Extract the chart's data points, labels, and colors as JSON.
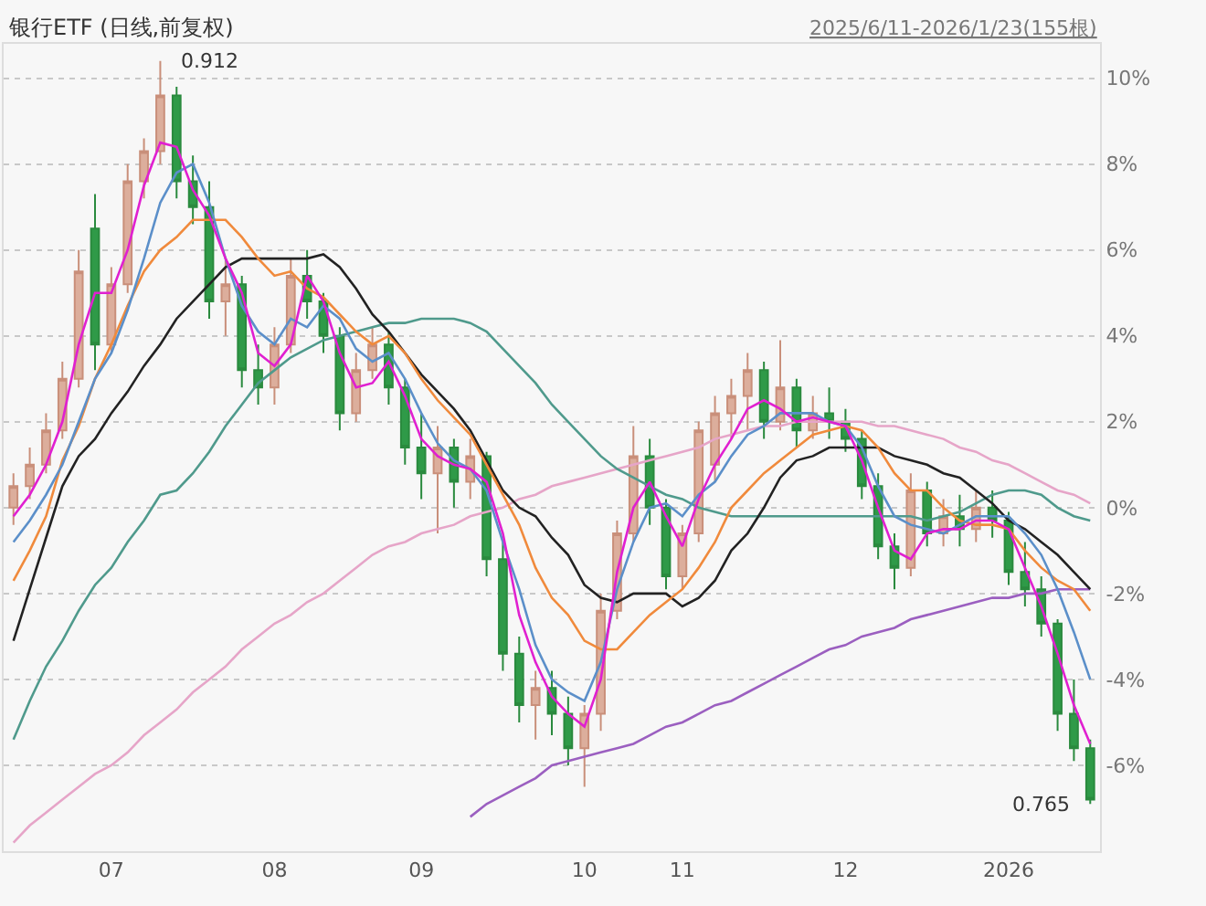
{
  "chart_data": {
    "type": "candlestick",
    "title": "银行ETF (日线,前复权)",
    "subtitle": "2025/6/11-2026/1/23(155根)",
    "categories": [
      null,
      null,
      null,
      null,
      null,
      null,
      "07",
      null,
      null,
      null,
      null,
      null,
      null,
      null,
      null,
      null,
      "08",
      null,
      null,
      null,
      null,
      null,
      null,
      null,
      null,
      "09",
      null,
      null,
      null,
      null,
      null,
      null,
      null,
      null,
      null,
      "10",
      null,
      null,
      null,
      null,
      null,
      "11",
      null,
      null,
      null,
      null,
      null,
      null,
      null,
      null,
      null,
      "12",
      null,
      null,
      null,
      null,
      null,
      null,
      null,
      null,
      null,
      "2026",
      null,
      null,
      null,
      null,
      null
    ],
    "ohlc": [
      [
        0.0,
        0.8,
        -0.4,
        0.5
      ],
      [
        0.5,
        1.4,
        0.2,
        1.0
      ],
      [
        1.0,
        2.2,
        0.8,
        1.8
      ],
      [
        1.8,
        3.4,
        1.6,
        3.0
      ],
      [
        3.0,
        6.0,
        2.8,
        5.5
      ],
      [
        6.5,
        7.3,
        3.2,
        3.8
      ],
      [
        3.8,
        5.6,
        3.6,
        5.2
      ],
      [
        5.2,
        8.0,
        5.0,
        7.6
      ],
      [
        7.6,
        8.6,
        7.2,
        8.3
      ],
      [
        8.3,
        10.4,
        8.0,
        9.6
      ],
      [
        9.6,
        9.8,
        7.2,
        7.6
      ],
      [
        7.6,
        8.2,
        6.6,
        7.0
      ],
      [
        7.0,
        7.6,
        4.4,
        4.8
      ],
      [
        4.8,
        5.8,
        4.0,
        5.2
      ],
      [
        5.2,
        5.4,
        2.8,
        3.2
      ],
      [
        3.2,
        3.8,
        2.4,
        2.8
      ],
      [
        2.8,
        4.2,
        2.4,
        3.8
      ],
      [
        3.8,
        5.8,
        3.6,
        5.4
      ],
      [
        5.4,
        6.0,
        4.4,
        4.8
      ],
      [
        4.8,
        5.0,
        3.6,
        4.0
      ],
      [
        4.0,
        4.2,
        1.8,
        2.2
      ],
      [
        2.2,
        3.6,
        2.0,
        3.2
      ],
      [
        3.2,
        4.2,
        3.0,
        3.8
      ],
      [
        3.8,
        4.1,
        2.4,
        2.8
      ],
      [
        2.8,
        3.0,
        1.0,
        1.4
      ],
      [
        1.4,
        2.2,
        0.2,
        0.8
      ],
      [
        0.8,
        1.9,
        -0.6,
        1.4
      ],
      [
        1.4,
        1.6,
        0.0,
        0.6
      ],
      [
        0.6,
        1.6,
        0.2,
        1.2
      ],
      [
        1.2,
        1.3,
        -1.6,
        -1.2
      ],
      [
        -1.2,
        -0.8,
        -3.8,
        -3.4
      ],
      [
        -3.4,
        -3.0,
        -5.0,
        -4.6
      ],
      [
        -4.6,
        -3.8,
        -5.4,
        -4.2
      ],
      [
        -4.2,
        -3.8,
        -5.3,
        -4.8
      ],
      [
        -4.8,
        -4.4,
        -6.0,
        -5.6
      ],
      [
        -5.6,
        -4.6,
        -6.5,
        -4.8
      ],
      [
        -4.8,
        -2.0,
        -5.2,
        -2.4
      ],
      [
        -2.4,
        -0.3,
        -2.6,
        -0.6
      ],
      [
        -0.6,
        1.9,
        -0.8,
        1.2
      ],
      [
        1.2,
        1.6,
        -0.4,
        0.0
      ],
      [
        0.0,
        0.2,
        -1.9,
        -1.6
      ],
      [
        -1.6,
        -0.4,
        -1.9,
        -0.6
      ],
      [
        -0.6,
        2.0,
        -0.8,
        1.8
      ],
      [
        1.0,
        2.6,
        0.6,
        2.2
      ],
      [
        2.2,
        3.0,
        1.6,
        2.6
      ],
      [
        2.6,
        3.6,
        1.8,
        3.2
      ],
      [
        3.2,
        3.4,
        1.6,
        2.0
      ],
      [
        2.0,
        3.9,
        1.8,
        2.8
      ],
      [
        2.8,
        3.0,
        1.4,
        1.8
      ],
      [
        1.8,
        2.6,
        1.6,
        2.2
      ],
      [
        2.2,
        2.8,
        1.6,
        2.0
      ],
      [
        2.0,
        2.3,
        1.3,
        1.6
      ],
      [
        1.6,
        1.8,
        0.2,
        0.5
      ],
      [
        0.5,
        0.8,
        -1.2,
        -0.9
      ],
      [
        -0.9,
        -0.6,
        -1.9,
        -1.4
      ],
      [
        -1.4,
        0.8,
        -1.6,
        0.4
      ],
      [
        0.4,
        0.6,
        -0.9,
        -0.6
      ],
      [
        -0.6,
        0.2,
        -0.9,
        -0.2
      ],
      [
        -0.2,
        0.3,
        -0.9,
        -0.5
      ],
      [
        -0.5,
        0.4,
        -0.8,
        0.0
      ],
      [
        0.0,
        0.4,
        -0.7,
        -0.3
      ],
      [
        -0.3,
        -0.1,
        -1.8,
        -1.5
      ],
      [
        -1.5,
        -0.8,
        -2.3,
        -1.9
      ],
      [
        -1.9,
        -1.6,
        -3.0,
        -2.7
      ],
      [
        -2.7,
        -2.6,
        -5.2,
        -4.8
      ],
      [
        -4.8,
        -4.0,
        -5.9,
        -5.6
      ],
      [
        -5.6,
        -5.4,
        -6.9,
        -6.8
      ]
    ],
    "series": [
      {
        "type": "line",
        "color": "#9b5fc0",
        "values": [
          null,
          null,
          null,
          null,
          null,
          null,
          null,
          null,
          null,
          null,
          null,
          null,
          null,
          null,
          null,
          null,
          null,
          null,
          null,
          null,
          null,
          null,
          null,
          null,
          null,
          null,
          null,
          null,
          -7.2,
          -6.9,
          -6.7,
          -6.5,
          -6.3,
          -6.0,
          -5.9,
          -5.8,
          -5.7,
          -5.6,
          -5.5,
          -5.3,
          -5.1,
          -5.0,
          -4.8,
          -4.6,
          -4.5,
          -4.3,
          -4.1,
          -3.9,
          -3.7,
          -3.5,
          -3.3,
          -3.2,
          -3.0,
          -2.9,
          -2.8,
          -2.6,
          -2.5,
          -2.4,
          -2.3,
          -2.2,
          -2.1,
          -2.1,
          -2.0,
          -2.0,
          -1.9,
          -1.9,
          -1.9
        ]
      },
      {
        "type": "line",
        "color": "#e6a5c8",
        "values": [
          -7.8,
          -7.4,
          -7.1,
          -6.8,
          -6.5,
          -6.2,
          -6.0,
          -5.7,
          -5.3,
          -5.0,
          -4.7,
          -4.3,
          -4.0,
          -3.7,
          -3.3,
          -3.0,
          -2.7,
          -2.5,
          -2.2,
          -2.0,
          -1.7,
          -1.4,
          -1.1,
          -0.9,
          -0.8,
          -0.6,
          -0.5,
          -0.4,
          -0.2,
          -0.1,
          0.0,
          0.2,
          0.3,
          0.5,
          0.6,
          0.7,
          0.8,
          0.9,
          1.0,
          1.1,
          1.2,
          1.3,
          1.4,
          1.6,
          1.7,
          1.8,
          1.9,
          1.9,
          2.0,
          2.0,
          2.0,
          2.0,
          2.0,
          1.9,
          1.9,
          1.8,
          1.7,
          1.6,
          1.4,
          1.3,
          1.1,
          1.0,
          0.8,
          0.6,
          0.4,
          0.3,
          0.1
        ]
      },
      {
        "type": "line",
        "color": "#4f9a8c",
        "values": [
          -5.4,
          -4.5,
          -3.7,
          -3.1,
          -2.4,
          -1.8,
          -1.4,
          -0.8,
          -0.3,
          0.3,
          0.4,
          0.8,
          1.3,
          1.9,
          2.4,
          2.9,
          3.2,
          3.5,
          3.7,
          3.9,
          4.0,
          4.1,
          4.2,
          4.3,
          4.3,
          4.4,
          4.4,
          4.4,
          4.3,
          4.1,
          3.7,
          3.3,
          2.9,
          2.4,
          2.0,
          1.6,
          1.2,
          0.9,
          0.7,
          0.5,
          0.3,
          0.2,
          0.0,
          -0.1,
          -0.2,
          -0.2,
          -0.2,
          -0.2,
          -0.2,
          -0.2,
          -0.2,
          -0.2,
          -0.2,
          -0.2,
          -0.2,
          -0.2,
          -0.3,
          -0.2,
          -0.1,
          0.1,
          0.3,
          0.4,
          0.4,
          0.3,
          0.0,
          -0.2,
          -0.3
        ]
      },
      {
        "type": "line",
        "color": "#222222",
        "values": [
          -3.1,
          -1.9,
          -0.7,
          0.5,
          1.2,
          1.6,
          2.2,
          2.7,
          3.3,
          3.8,
          4.4,
          4.8,
          5.2,
          5.6,
          5.8,
          5.8,
          5.8,
          5.8,
          5.8,
          5.9,
          5.6,
          5.1,
          4.5,
          4.1,
          3.6,
          3.1,
          2.7,
          2.3,
          1.8,
          1.1,
          0.4,
          0.0,
          -0.2,
          -0.7,
          -1.1,
          -1.8,
          -2.1,
          -2.2,
          -2.0,
          -2.0,
          -2.0,
          -2.3,
          -2.1,
          -1.7,
          -1.0,
          -0.6,
          0.0,
          0.7,
          1.1,
          1.2,
          1.4,
          1.4,
          1.4,
          1.4,
          1.2,
          1.1,
          1.0,
          0.8,
          0.7,
          0.4,
          0.1,
          -0.3,
          -0.5,
          -0.8,
          -1.1,
          -1.5,
          -1.9
        ]
      },
      {
        "type": "line",
        "color": "#f08a3c",
        "values": [
          -1.7,
          -1.0,
          -0.2,
          1.1,
          1.9,
          3.0,
          3.8,
          4.7,
          5.5,
          6.0,
          6.3,
          6.7,
          6.7,
          6.7,
          6.3,
          5.8,
          5.4,
          5.5,
          5.1,
          4.9,
          4.5,
          4.1,
          3.8,
          4.0,
          3.6,
          3.0,
          2.5,
          2.1,
          1.7,
          1.0,
          0.3,
          -0.4,
          -1.4,
          -2.1,
          -2.5,
          -3.1,
          -3.3,
          -3.3,
          -2.9,
          -2.5,
          -2.2,
          -1.9,
          -1.4,
          -0.8,
          0.0,
          0.4,
          0.8,
          1.1,
          1.4,
          1.7,
          1.8,
          1.9,
          1.8,
          1.4,
          0.8,
          0.4,
          0.4,
          0.0,
          -0.3,
          -0.4,
          -0.4,
          -0.5,
          -1.0,
          -1.4,
          -1.7,
          -1.9,
          -2.4
        ]
      },
      {
        "type": "line",
        "color": "#5b8fc9",
        "values": [
          -0.8,
          -0.3,
          0.3,
          1.0,
          2.0,
          3.0,
          3.6,
          4.6,
          5.8,
          7.1,
          7.8,
          8.0,
          7.1,
          5.8,
          4.7,
          4.1,
          3.8,
          4.4,
          4.2,
          4.7,
          4.4,
          3.7,
          3.4,
          3.6,
          3.0,
          2.2,
          1.5,
          1.1,
          0.9,
          0.4,
          -0.8,
          -1.9,
          -3.2,
          -4.0,
          -4.3,
          -4.5,
          -3.6,
          -1.9,
          -0.8,
          0.0,
          0.1,
          -0.2,
          0.3,
          0.6,
          1.2,
          1.7,
          1.9,
          2.2,
          2.2,
          2.2,
          2.0,
          1.9,
          1.4,
          0.5,
          -0.2,
          -0.4,
          -0.5,
          -0.6,
          -0.4,
          -0.2,
          -0.2,
          -0.2,
          -0.6,
          -1.1,
          -1.9,
          -2.9,
          -4.0
        ]
      },
      {
        "type": "line",
        "color": "#e020d0",
        "values": [
          -0.2,
          0.3,
          1.0,
          2.0,
          3.8,
          5.0,
          5.0,
          6.0,
          7.5,
          8.5,
          8.4,
          7.4,
          6.8,
          5.8,
          5.0,
          3.6,
          3.3,
          3.8,
          5.4,
          4.8,
          3.6,
          2.8,
          2.9,
          3.4,
          2.6,
          1.6,
          1.2,
          1.0,
          0.9,
          0.6,
          -0.6,
          -2.5,
          -3.6,
          -4.4,
          -4.8,
          -5.1,
          -4.0,
          -1.5,
          0.0,
          0.6,
          -0.2,
          -0.9,
          0.2,
          1.0,
          1.6,
          2.3,
          2.5,
          2.3,
          2.0,
          2.1,
          2.0,
          1.9,
          1.1,
          0.0,
          -1.0,
          -1.2,
          -0.6,
          -0.5,
          -0.5,
          -0.3,
          -0.3,
          -0.5,
          -1.4,
          -2.3,
          -3.4,
          -4.6,
          -5.5
        ]
      }
    ],
    "annotations": [
      "0.912",
      "0.765"
    ],
    "ylim": [
      -8,
      10.8
    ],
    "yticks": [
      {
        "value": 10,
        "label": "10%"
      },
      {
        "value": 8,
        "label": "8%"
      },
      {
        "value": 6,
        "label": "6%"
      },
      {
        "value": 4,
        "label": "4%"
      },
      {
        "value": 2,
        "label": "2%"
      },
      {
        "value": 0,
        "label": "0%"
      },
      {
        "value": -2,
        "label": "-2%"
      },
      {
        "value": -4,
        "label": "-4%"
      },
      {
        "value": -6,
        "label": "-6%"
      }
    ],
    "grid": "y",
    "line_style": "solid",
    "marker": "none"
  }
}
